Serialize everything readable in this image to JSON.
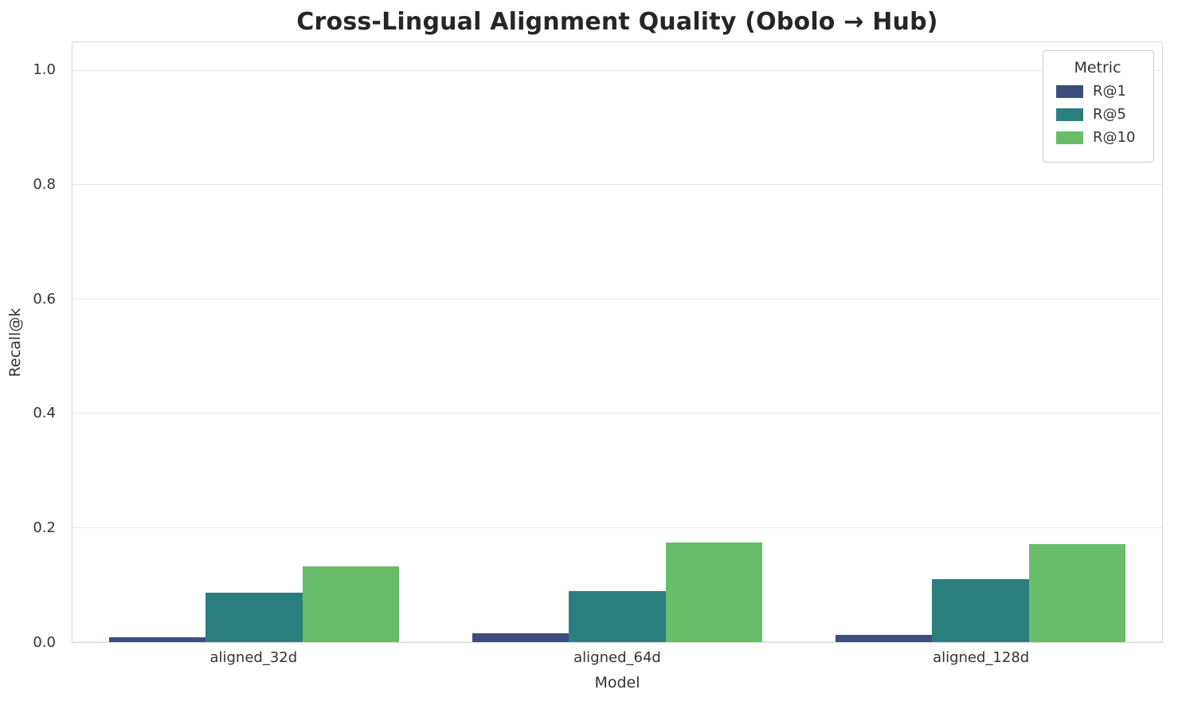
{
  "chart_data": {
    "type": "bar",
    "title": "Cross-Lingual Alignment Quality (Obolo → Hub)",
    "xlabel": "Model",
    "ylabel": "Recall@k",
    "categories": [
      "aligned_32d",
      "aligned_64d",
      "aligned_128d"
    ],
    "series": [
      {
        "name": "R@1",
        "color": "#3d4e7e",
        "values": [
          0.008,
          0.016,
          0.013
        ]
      },
      {
        "name": "R@5",
        "color": "#2a7f7e",
        "values": [
          0.086,
          0.089,
          0.11
        ]
      },
      {
        "name": "R@10",
        "color": "#68bd6b",
        "values": [
          0.132,
          0.174,
          0.171
        ]
      }
    ],
    "ylim": [
      0,
      1.05
    ],
    "yticks": [
      0.0,
      0.2,
      0.4,
      0.6,
      0.8,
      1.0
    ],
    "grid": true,
    "legend_title": "Metric",
    "legend_position": "upper right"
  }
}
